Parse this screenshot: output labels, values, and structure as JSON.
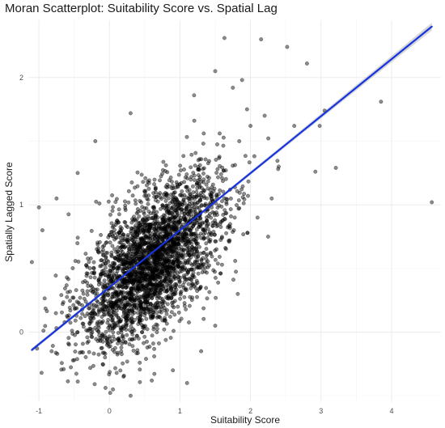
{
  "chart_data": {
    "type": "scatter",
    "title": "Moran Scatterplot: Suitability Score vs. Spatial Lag",
    "xlabel": "Suitability Score",
    "ylabel": "Spatially Lagged Score",
    "xlim": [
      -1.15,
      4.7
    ],
    "ylim": [
      -0.55,
      2.45
    ],
    "x_ticks": [
      -1,
      0,
      1,
      2,
      3,
      4
    ],
    "y_ticks": [
      0,
      1,
      2
    ],
    "x_tick_labels": [
      "-1",
      "0",
      "1",
      "2",
      "3",
      "4"
    ],
    "y_tick_labels": [
      "0",
      "1",
      "2"
    ],
    "grid": true,
    "legend": "none",
    "point_color": "#000000",
    "point_opacity": 0.45,
    "point_count_approx": 3000,
    "cluster": {
      "x_mean": 0.6,
      "x_sd": 0.5,
      "y_mean": 0.55,
      "y_sd": 0.33,
      "correlation": 0.6
    },
    "points": [
      [
        4.57,
        1.02
      ],
      [
        2.15,
        2.3
      ],
      [
        1.63,
        2.31
      ],
      [
        2.52,
        2.24
      ],
      [
        2.8,
        2.11
      ],
      [
        3.85,
        1.81
      ],
      [
        3.05,
        1.74
      ],
      [
        2.62,
        1.62
      ],
      [
        3.21,
        1.29
      ],
      [
        2.92,
        1.26
      ],
      [
        2.98,
        1.62
      ],
      [
        2.0,
        1.62
      ],
      [
        1.5,
        2.05
      ],
      [
        1.75,
        1.92
      ],
      [
        2.2,
        1.7
      ],
      [
        1.88,
        1.98
      ],
      [
        1.2,
        1.86
      ],
      [
        0.3,
        1.72
      ],
      [
        -0.2,
        1.5
      ],
      [
        -1.0,
        0.98
      ],
      [
        -1.1,
        0.55
      ],
      [
        -0.95,
        0.8
      ],
      [
        -0.75,
        1.05
      ],
      [
        -0.45,
        1.25
      ],
      [
        2.4,
        1.3
      ],
      [
        2.3,
        1.05
      ],
      [
        1.95,
        1.75
      ],
      [
        2.1,
        0.9
      ],
      [
        2.25,
        0.75
      ],
      [
        1.82,
        0.3
      ],
      [
        1.5,
        0.05
      ],
      [
        1.3,
        -0.15
      ],
      [
        0.9,
        -0.3
      ],
      [
        0.3,
        -0.5
      ],
      [
        0.05,
        -0.45
      ],
      [
        -0.5,
        -0.22
      ],
      [
        -0.82,
        -0.15
      ],
      [
        0.6,
        -0.38
      ],
      [
        1.1,
        -0.4
      ],
      [
        0.2,
        -0.35
      ]
    ],
    "trend_line": {
      "type": "linear",
      "color": "#1533e0",
      "start": [
        -1.1,
        -0.14
      ],
      "end": [
        4.57,
        2.4
      ],
      "ci_color": "#c8c8c8"
    }
  }
}
